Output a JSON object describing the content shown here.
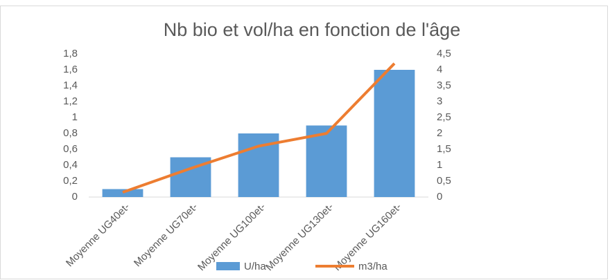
{
  "chart_data": {
    "type": "bar_line",
    "title": "Nb bio et vol/ha en fonction de l'âge",
    "categories": [
      "Moyenne UG40et-",
      "Moyenne UG70et-",
      "Moyenne UG100et-",
      "Moyenne UG130et-",
      "Moyenne UG160et-"
    ],
    "series": [
      {
        "name": "U/ha",
        "type": "bar",
        "color": "#5b9bd5",
        "values": [
          0.1,
          0.5,
          0.8,
          0.9,
          1.6
        ]
      },
      {
        "name": "m3/ha",
        "type": "line",
        "color": "#ed7d31",
        "axis": "y2",
        "values": [
          0.15,
          0.9,
          1.6,
          2.0,
          4.2
        ]
      }
    ],
    "ylim": [
      0,
      1.8
    ],
    "yticks": [
      0,
      {
        "value": 0.2,
        "label": "0,2"
      },
      {
        "value": 0.4,
        "label": "0,4"
      },
      {
        "value": 0.6,
        "label": "0,6"
      },
      {
        "value": 0.8,
        "label": "0,8"
      },
      1,
      {
        "value": 1.2,
        "label": "1,2"
      },
      {
        "value": 1.4,
        "label": "1,4"
      },
      {
        "value": 1.6,
        "label": "1,6"
      },
      {
        "value": 1.8,
        "label": "1,8"
      }
    ],
    "y2lim": [
      0,
      4.5
    ],
    "y2ticks": [
      0,
      {
        "value": 0.5,
        "label": "0,5"
      },
      1,
      {
        "value": 1.5,
        "label": "1,5"
      },
      2,
      {
        "value": 2.5,
        "label": "2,5"
      },
      3,
      {
        "value": 3.5,
        "label": "3,5"
      },
      4,
      {
        "value": 4.5,
        "label": "4,5"
      }
    ],
    "legend": "bottom"
  }
}
